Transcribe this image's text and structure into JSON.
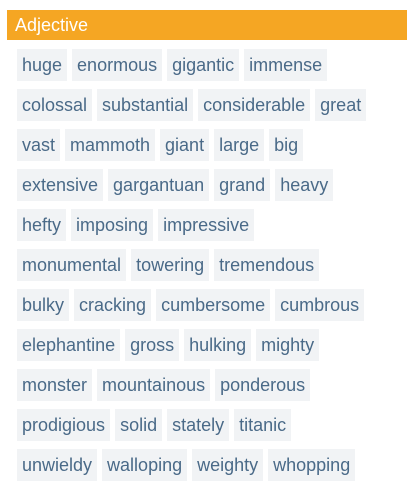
{
  "header": {
    "title": "Adjective"
  },
  "colors": {
    "header_bg": "#f5a623",
    "tag_bg": "#f1f3f5",
    "tag_text": "#4a6a88"
  },
  "tags": [
    [
      "huge",
      "enormous",
      "gigantic",
      "immense"
    ],
    [
      "colossal",
      "substantial",
      "considerable",
      "great"
    ],
    [
      "vast",
      "mammoth",
      "giant",
      "large",
      "big"
    ],
    [
      "extensive",
      "gargantuan",
      "grand",
      "heavy"
    ],
    [
      "hefty",
      "imposing",
      "impressive"
    ],
    [
      "monumental",
      "towering",
      "tremendous"
    ],
    [
      "bulky",
      "cracking",
      "cumbersome",
      "cumbrous"
    ],
    [
      "elephantine",
      "gross",
      "hulking",
      "mighty"
    ],
    [
      "monster",
      "mountainous",
      "ponderous"
    ],
    [
      "prodigious",
      "solid",
      "stately",
      "titanic"
    ],
    [
      "unwieldy",
      "walloping",
      "weighty",
      "whopping"
    ]
  ]
}
